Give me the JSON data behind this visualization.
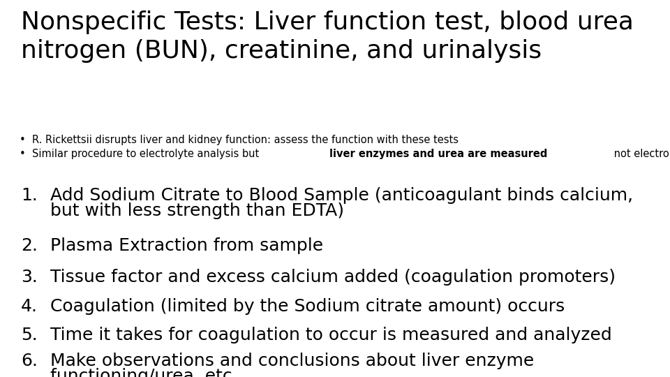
{
  "bg_color": "#ffffff",
  "title_line1": "Nonspecific Tests: Liver function test, blood urea",
  "title_line2": "nitrogen (BUN), creatinine, and urinalysis",
  "title_fontsize": 26,
  "title_color": "#000000",
  "bullet1": "R. Rickettsii disrupts liver and kidney function: assess the function with these tests",
  "bullet2_part1": "Similar procedure to electrolyte analysis but ",
  "bullet2_bold": "liver enzymes and urea are measured",
  "bullet2_part2": " not electrolytes",
  "bullet_fontsize": 10.5,
  "numbered_fontsize": 18,
  "numbered_items_line1": [
    "Add Sodium Citrate to Blood Sample (anticoagulant binds calcium,",
    "Plasma Extraction from sample",
    "Tissue factor and excess calcium added (coagulation promoters)",
    "Coagulation (limited by the Sodium citrate amount) occurs",
    "Time it takes for coagulation to occur is measured and analyzed",
    "Make observations and conclusions about liver enzyme"
  ],
  "numbered_items_line2": [
    "but with less strength than EDTA)",
    "",
    "",
    "",
    "",
    "functioning/urea, etc."
  ]
}
